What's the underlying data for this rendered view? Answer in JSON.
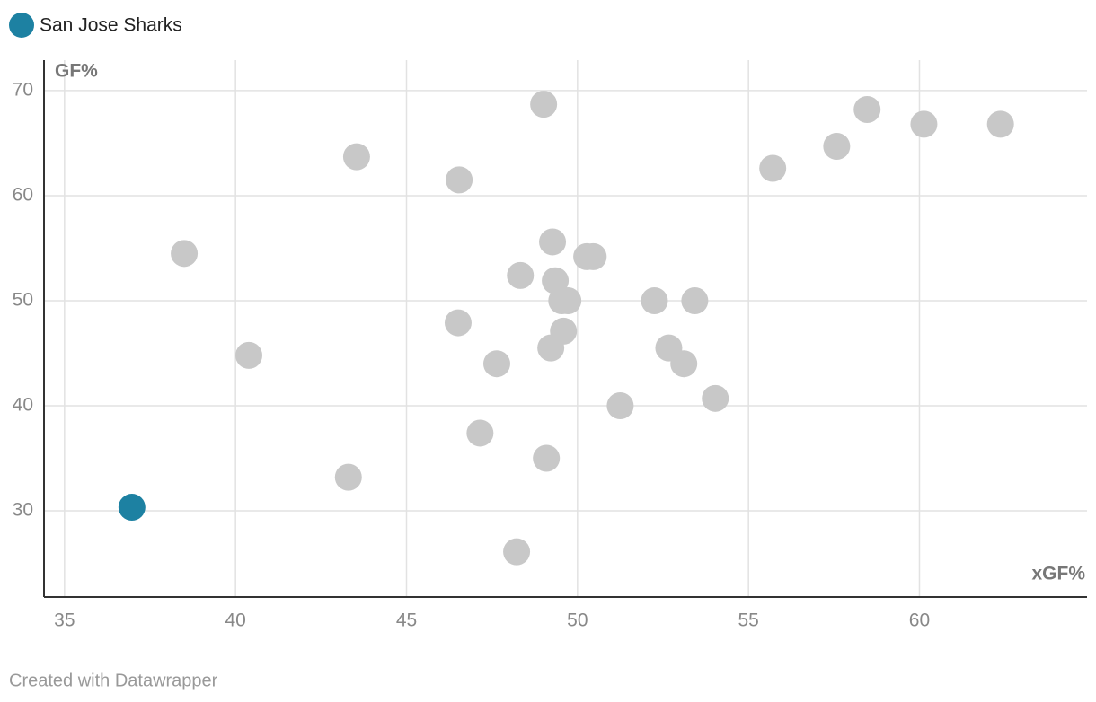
{
  "chart_data": {
    "type": "scatter",
    "x_label": "xGF%",
    "y_label": "GF%",
    "credit": "Created with Datawrapper",
    "xlim": [
      34.4,
      64.9
    ],
    "ylim": [
      21.8,
      72.9
    ],
    "xticks": [
      35,
      40,
      45,
      50,
      55,
      60
    ],
    "yticks": [
      30,
      40,
      50,
      60,
      70
    ],
    "grid": true,
    "series": [
      {
        "color": "#c8c8c8",
        "x": [
          38.5,
          40.39,
          43.3,
          43.54,
          46.54,
          46.51,
          47.15,
          47.64,
          48.22,
          48.33,
          49.01,
          49.09,
          49.22,
          49.27,
          49.35,
          49.54,
          49.72,
          49.59,
          50.27,
          50.46,
          51.25,
          52.25,
          52.67,
          53.11,
          53.43,
          54.03,
          55.71,
          57.58,
          58.47,
          60.13,
          62.37
        ],
        "values": [
          54.5,
          44.8,
          33.2,
          63.7,
          61.5,
          47.9,
          37.4,
          44.0,
          26.1,
          52.4,
          68.7,
          35.0,
          45.5,
          55.6,
          51.9,
          50.0,
          50.0,
          47.1,
          54.2,
          54.2,
          40.0,
          50.0,
          45.5,
          44.0,
          50.0,
          40.7,
          62.6,
          64.7,
          68.2,
          66.8,
          66.8
        ]
      },
      {
        "name": "San Jose Sharks",
        "color": "#1d81a2",
        "x": [
          36.97
        ],
        "values": [
          30.34
        ]
      }
    ]
  }
}
